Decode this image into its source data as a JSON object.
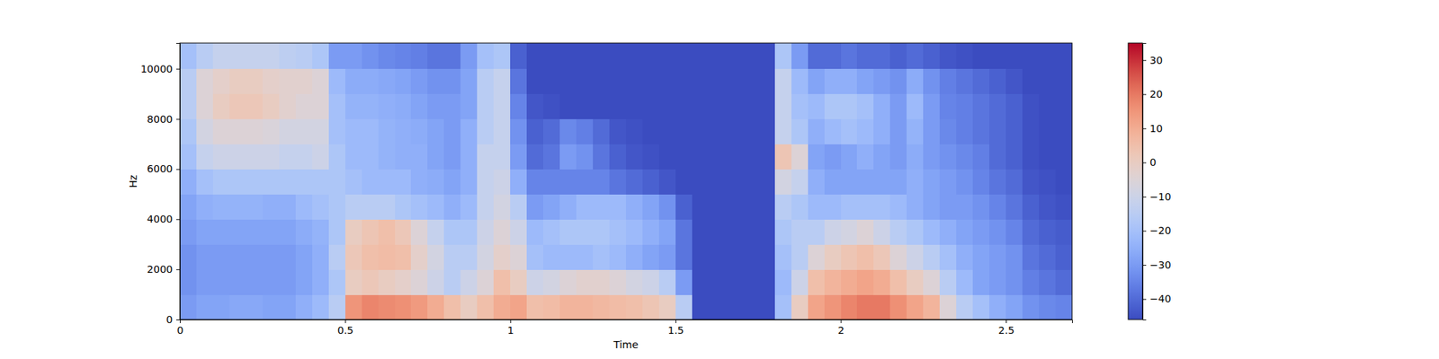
{
  "chart_data": {
    "type": "heatmap",
    "xlabel": "Time",
    "ylabel": "Hz",
    "x_edges": [
      0,
      0.05,
      0.1,
      0.15,
      0.2,
      0.25,
      0.3,
      0.35,
      0.4,
      0.45,
      0.5,
      0.55,
      0.6,
      0.65,
      0.7,
      0.75,
      0.8,
      0.85,
      0.9,
      0.95,
      1.0,
      1.05,
      1.1,
      1.15,
      1.2,
      1.25,
      1.3,
      1.35,
      1.4,
      1.45,
      1.5,
      1.55,
      1.6,
      1.65,
      1.7,
      1.75,
      1.8,
      1.85,
      1.9,
      1.95,
      2.0,
      2.05,
      2.1,
      2.15,
      2.2,
      2.25,
      2.3,
      2.35,
      2.4,
      2.45,
      2.5,
      2.55,
      2.6,
      2.65,
      2.7
    ],
    "y_edges": [
      0,
      1000,
      2000,
      3000,
      4000,
      5000,
      6000,
      7000,
      8000,
      9000,
      10000,
      11025
    ],
    "cells": [
      [
        -30,
        -28,
        -28,
        -27,
        -27,
        -28,
        -28,
        -25,
        -22,
        -15,
        15,
        18,
        17,
        16,
        14,
        10,
        5,
        0,
        5,
        10,
        12,
        5,
        6,
        8,
        8,
        7,
        6,
        5,
        3,
        0,
        -15,
        -46,
        -46,
        -46,
        -46,
        -46,
        -20,
        0,
        12,
        15,
        18,
        20,
        20,
        16,
        12,
        8,
        -5,
        -15,
        -20,
        -25,
        -28,
        -32,
        -34,
        -35
      ],
      [
        -32,
        -30,
        -30,
        -30,
        -30,
        -30,
        -30,
        -28,
        -25,
        -18,
        0,
        2,
        0,
        -2,
        -5,
        -10,
        -15,
        -10,
        -5,
        5,
        0,
        -10,
        -8,
        -5,
        -3,
        -3,
        -5,
        -8,
        -10,
        -15,
        -30,
        -46,
        -46,
        -46,
        -46,
        -46,
        -22,
        -10,
        5,
        8,
        10,
        12,
        10,
        5,
        0,
        -5,
        -15,
        -22,
        -28,
        -30,
        -32,
        -36,
        -38,
        -40
      ],
      [
        -32,
        -30,
        -30,
        -30,
        -30,
        -30,
        -30,
        -28,
        -25,
        -15,
        2,
        5,
        6,
        5,
        -2,
        -8,
        -15,
        -15,
        -8,
        -2,
        -5,
        -20,
        -22,
        -22,
        -22,
        -20,
        -22,
        -25,
        -28,
        -30,
        -38,
        -46,
        -46,
        -46,
        -46,
        -46,
        -20,
        -15,
        -5,
        0,
        3,
        5,
        2,
        -5,
        -10,
        -15,
        -20,
        -25,
        -28,
        -30,
        -32,
        -38,
        -40,
        -42
      ],
      [
        -30,
        -28,
        -28,
        -28,
        -28,
        -28,
        -28,
        -26,
        -24,
        -18,
        0,
        3,
        5,
        2,
        -5,
        -12,
        -18,
        -18,
        -10,
        -5,
        -10,
        -22,
        -20,
        -18,
        -18,
        -18,
        -20,
        -22,
        -25,
        -28,
        -38,
        -46,
        -46,
        -46,
        -46,
        -46,
        -18,
        -15,
        -15,
        -10,
        -8,
        -5,
        -10,
        -15,
        -18,
        -22,
        -25,
        -28,
        -30,
        -32,
        -35,
        -40,
        -42,
        -43
      ],
      [
        -28,
        -25,
        -24,
        -24,
        -24,
        -25,
        -25,
        -22,
        -20,
        -18,
        -15,
        -15,
        -15,
        -18,
        -20,
        -22,
        -25,
        -22,
        -12,
        -8,
        -15,
        -30,
        -28,
        -25,
        -22,
        -22,
        -22,
        -25,
        -28,
        -32,
        -42,
        -46,
        -46,
        -46,
        -46,
        -46,
        -15,
        -18,
        -22,
        -22,
        -20,
        -20,
        -20,
        -22,
        -25,
        -28,
        -30,
        -30,
        -32,
        -35,
        -38,
        -42,
        -44,
        -45
      ],
      [
        -25,
        -20,
        -18,
        -18,
        -18,
        -18,
        -18,
        -18,
        -18,
        -18,
        -20,
        -22,
        -22,
        -22,
        -25,
        -26,
        -28,
        -25,
        -12,
        -10,
        -25,
        -35,
        -35,
        -35,
        -35,
        -35,
        -38,
        -40,
        -42,
        -44,
        -46,
        -46,
        -46,
        -46,
        -46,
        -46,
        -8,
        -12,
        -25,
        -28,
        -28,
        -28,
        -28,
        -28,
        -25,
        -28,
        -30,
        -32,
        -35,
        -38,
        -40,
        -44,
        -45,
        -46
      ],
      [
        -20,
        -12,
        -10,
        -10,
        -10,
        -10,
        -12,
        -12,
        -10,
        -18,
        -22,
        -22,
        -24,
        -25,
        -25,
        -28,
        -30,
        -25,
        -12,
        -12,
        -30,
        -40,
        -38,
        -30,
        -32,
        -38,
        -42,
        -44,
        -45,
        -46,
        -46,
        -46,
        -46,
        -46,
        -46,
        -46,
        3,
        -5,
        -28,
        -30,
        -28,
        -25,
        -28,
        -30,
        -26,
        -30,
        -32,
        -34,
        -36,
        -40,
        -42,
        -45,
        -46,
        -46
      ],
      [
        -18,
        -8,
        -5,
        -5,
        -5,
        -6,
        -8,
        -8,
        -8,
        -20,
        -22,
        -22,
        -24,
        -25,
        -26,
        -28,
        -30,
        -25,
        -15,
        -12,
        -32,
        -42,
        -40,
        -34,
        -36,
        -40,
        -44,
        -45,
        -46,
        -46,
        -46,
        -46,
        -46,
        -46,
        -46,
        -46,
        -12,
        -18,
        -25,
        -22,
        -20,
        -22,
        -25,
        -30,
        -24,
        -30,
        -34,
        -36,
        -38,
        -40,
        -42,
        -45,
        -46,
        -46
      ],
      [
        -15,
        -5,
        0,
        2,
        2,
        0,
        -3,
        -5,
        -5,
        -20,
        -24,
        -24,
        -25,
        -26,
        -28,
        -30,
        -30,
        -28,
        -15,
        -12,
        -35,
        -44,
        -45,
        -46,
        -46,
        -46,
        -46,
        -46,
        -46,
        -46,
        -46,
        -46,
        -46,
        -46,
        -46,
        -46,
        -12,
        -20,
        -22,
        -18,
        -18,
        -20,
        -25,
        -30,
        -22,
        -30,
        -35,
        -36,
        -38,
        -40,
        -42,
        -45,
        -46,
        -46
      ],
      [
        -15,
        -5,
        -2,
        0,
        0,
        -2,
        -3,
        -3,
        -5,
        -22,
        -26,
        -26,
        -27,
        -28,
        -30,
        -32,
        -32,
        -28,
        -15,
        -12,
        -38,
        -46,
        -46,
        -46,
        -46,
        -46,
        -46,
        -46,
        -46,
        -46,
        -46,
        -46,
        -46,
        -46,
        -46,
        -46,
        -12,
        -22,
        -28,
        -25,
        -25,
        -28,
        -30,
        -32,
        -26,
        -32,
        -36,
        -38,
        -40,
        -42,
        -44,
        -46,
        -46,
        -46
      ],
      [
        -20,
        -15,
        -12,
        -12,
        -12,
        -12,
        -14,
        -15,
        -18,
        -30,
        -30,
        -32,
        -34,
        -35,
        -36,
        -38,
        -38,
        -30,
        -20,
        -18,
        -42,
        -46,
        -46,
        -46,
        -46,
        -46,
        -46,
        -46,
        -46,
        -46,
        -46,
        -46,
        -46,
        -46,
        -46,
        -46,
        -18,
        -30,
        -40,
        -40,
        -38,
        -40,
        -40,
        -42,
        -40,
        -42,
        -44,
        -45,
        -46,
        -46,
        -46,
        -46,
        -46,
        -46
      ]
    ],
    "xlim": [
      0,
      2.7
    ],
    "ylim": [
      0,
      11025
    ],
    "xticks": [
      0,
      0.5,
      1,
      1.5,
      2,
      2.5
    ],
    "yticks": [
      0,
      2000,
      4000,
      6000,
      8000,
      10000
    ],
    "colorbar": {
      "range": [
        -46,
        35
      ],
      "ticks": [
        {
          "value": -40,
          "label": "−40"
        },
        {
          "value": -30,
          "label": "−30"
        },
        {
          "value": -20,
          "label": "−20"
        },
        {
          "value": -10,
          "label": "−10"
        },
        0,
        10,
        20,
        30
      ]
    }
  }
}
